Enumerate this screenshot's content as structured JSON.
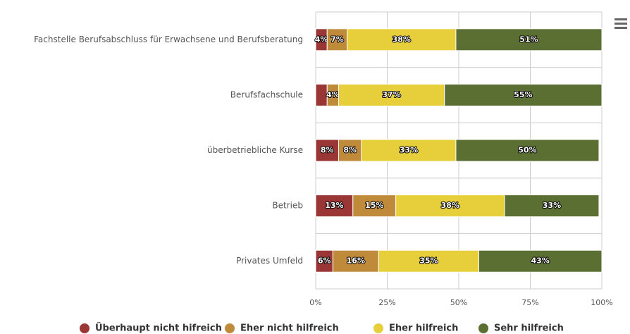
{
  "chart_data": {
    "type": "stacked-bar-horizontal",
    "categories": [
      "Fachstelle Berufsabschluss für Erwachsene und Berufsberatung",
      "Berufsfachschule",
      "überbetriebliche Kurse",
      "Betrieb",
      "Privates Umfeld"
    ],
    "series": [
      {
        "name": "Überhaupt nicht hifreich",
        "color": "#9a3636",
        "values": [
          4,
          4,
          8,
          13,
          6
        ],
        "value_labels": [
          "4%",
          null,
          "8%",
          "13%",
          "6%"
        ]
      },
      {
        "name": "Eher nicht hilfreich",
        "color": "#c08a3b",
        "values": [
          7,
          4,
          8,
          15,
          16
        ],
        "value_labels": [
          "7%",
          "4%",
          "8%",
          "15%",
          "16%"
        ]
      },
      {
        "name": "Eher hilfreich",
        "color": "#e7cf3b",
        "values": [
          38,
          37,
          33,
          38,
          35
        ],
        "value_labels": [
          "38%",
          "37%",
          "33%",
          "38%",
          "35%"
        ]
      },
      {
        "name": "Sehr hilfreich",
        "color": "#5a6f31",
        "values": [
          51,
          55,
          50,
          33,
          43
        ],
        "value_labels": [
          "51%",
          "55%",
          "50%",
          "33%",
          "43%"
        ]
      }
    ],
    "xlim": [
      0,
      100
    ],
    "xticks": [
      {
        "value": 0,
        "label": "0%"
      },
      {
        "value": 25,
        "label": "25%"
      },
      {
        "value": 50,
        "label": "50%"
      },
      {
        "value": 75,
        "label": "75%"
      },
      {
        "value": 100,
        "label": "100%"
      }
    ],
    "grid": true,
    "legend": "bottom"
  }
}
